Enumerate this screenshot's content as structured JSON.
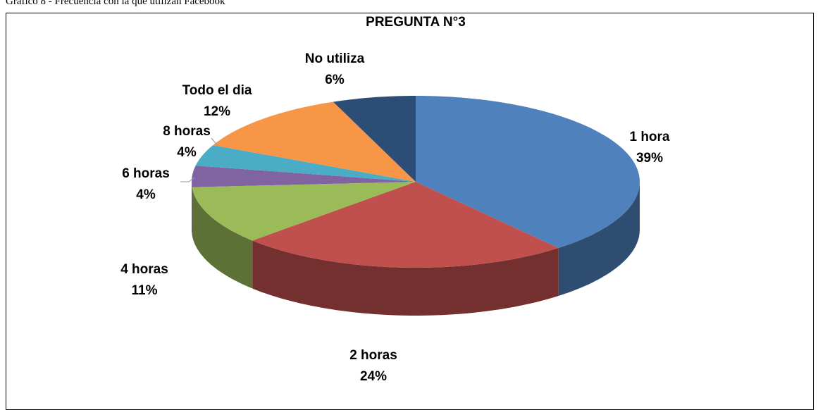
{
  "caption": "Gráfico 8 - Frecuencia con la que utilizan Facebook",
  "chart_data": {
    "type": "pie",
    "title": "PREGUNTA N°3",
    "categories": [
      "1 hora",
      "2 horas",
      "4 horas",
      "6 horas",
      "8 horas",
      "Todo el dia",
      "No utiliza"
    ],
    "values": [
      39,
      24,
      11,
      4,
      4,
      12,
      6
    ],
    "value_labels": [
      "39%",
      "24%",
      "11%",
      "4%",
      "4%",
      "12%",
      "6%"
    ],
    "colors": [
      "#4f81bd",
      "#c0504d",
      "#9bbb59",
      "#8064a2",
      "#4bacc6",
      "#f79646",
      "#2c4d75"
    ]
  }
}
